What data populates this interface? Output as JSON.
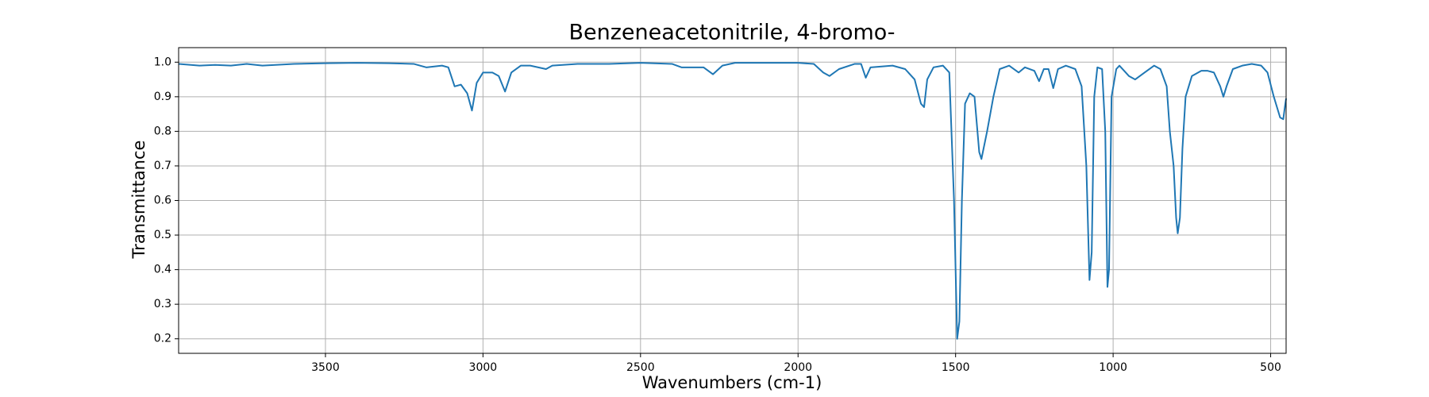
{
  "chart_data": {
    "type": "line",
    "title": "Benzeneacetonitrile, 4-bromo-",
    "xlabel": "Wavenumbers (cm-1)",
    "ylabel": "Transmittance",
    "xlim": [
      3966,
      451
    ],
    "ylim": [
      0.158,
      1.042
    ],
    "xticks": [
      3500,
      3000,
      2500,
      2000,
      1500,
      1000,
      500
    ],
    "yticks": [
      0.2,
      0.3,
      0.4,
      0.5,
      0.6,
      0.7,
      0.8,
      0.9,
      {
        "value": 1,
        "label": "1.0"
      }
    ],
    "grid": true,
    "x": [
      3966,
      3900,
      3850,
      3800,
      3750,
      3700,
      3600,
      3500,
      3400,
      3300,
      3220,
      3180,
      3130,
      3110,
      3090,
      3070,
      3050,
      3035,
      3020,
      3000,
      2970,
      2950,
      2930,
      2910,
      2880,
      2850,
      2800,
      2780,
      2700,
      2600,
      2500,
      2400,
      2370,
      2300,
      2270,
      2240,
      2200,
      2100,
      2000,
      1950,
      1920,
      1900,
      1870,
      1820,
      1800,
      1785,
      1770,
      1700,
      1660,
      1630,
      1610,
      1600,
      1590,
      1570,
      1540,
      1520,
      1505,
      1495,
      1488,
      1480,
      1470,
      1455,
      1440,
      1425,
      1418,
      1400,
      1380,
      1360,
      1330,
      1300,
      1280,
      1250,
      1235,
      1220,
      1205,
      1190,
      1175,
      1150,
      1120,
      1100,
      1085,
      1075,
      1068,
      1060,
      1050,
      1035,
      1025,
      1018,
      1013,
      1005,
      990,
      980,
      950,
      930,
      900,
      870,
      850,
      830,
      820,
      808,
      800,
      795,
      788,
      780,
      770,
      750,
      720,
      700,
      680,
      660,
      650,
      640,
      620,
      590,
      560,
      530,
      510,
      490,
      470,
      460,
      455,
      451
    ],
    "series": [
      {
        "color": "#1f77b4",
        "values": [
          0.995,
          0.99,
          0.992,
          0.99,
          0.995,
          0.99,
          0.995,
          0.997,
          0.998,
          0.997,
          0.995,
          0.985,
          0.99,
          0.985,
          0.93,
          0.935,
          0.91,
          0.86,
          0.94,
          0.97,
          0.97,
          0.96,
          0.915,
          0.97,
          0.99,
          0.99,
          0.98,
          0.99,
          0.995,
          0.995,
          0.998,
          0.995,
          0.985,
          0.985,
          0.965,
          0.99,
          0.998,
          0.998,
          0.998,
          0.995,
          0.97,
          0.96,
          0.98,
          0.995,
          0.995,
          0.955,
          0.985,
          0.99,
          0.98,
          0.95,
          0.88,
          0.87,
          0.95,
          0.985,
          0.99,
          0.97,
          0.6,
          0.2,
          0.25,
          0.6,
          0.88,
          0.91,
          0.9,
          0.74,
          0.72,
          0.8,
          0.9,
          0.98,
          0.99,
          0.97,
          0.985,
          0.975,
          0.945,
          0.98,
          0.98,
          0.925,
          0.98,
          0.99,
          0.98,
          0.93,
          0.7,
          0.37,
          0.45,
          0.9,
          0.985,
          0.98,
          0.8,
          0.35,
          0.4,
          0.9,
          0.98,
          0.99,
          0.96,
          0.95,
          0.97,
          0.99,
          0.98,
          0.93,
          0.8,
          0.7,
          0.55,
          0.505,
          0.55,
          0.75,
          0.9,
          0.96,
          0.975,
          0.975,
          0.97,
          0.93,
          0.9,
          0.93,
          0.98,
          0.99,
          0.995,
          0.99,
          0.97,
          0.9,
          0.84,
          0.835,
          0.87,
          0.895
        ]
      }
    ]
  }
}
